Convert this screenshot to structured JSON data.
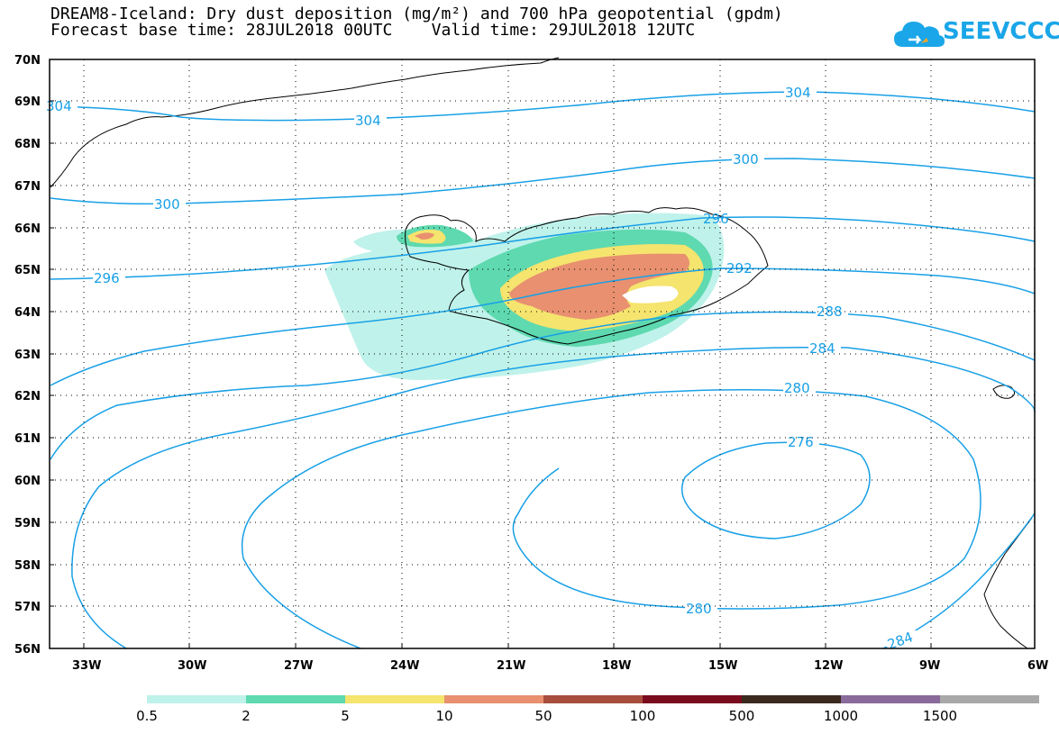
{
  "header": {
    "title_line1": "DREAM8-Iceland: Dry dust deposition (mg/m²) and 700 hPa geopotential (gpdm)",
    "title_line2": "Forecast base time: 28JUL2018 00UTC    Valid time: 29JUL2018 12UTC",
    "logo_text": "SEEVCCC",
    "logo_color": "#1aa6e8"
  },
  "map": {
    "lat_labels": [
      "70N",
      "69N",
      "68N",
      "67N",
      "66N",
      "65N",
      "64N",
      "63N",
      "62N",
      "61N",
      "60N",
      "59N",
      "58N",
      "57N",
      "56N"
    ],
    "lon_labels": [
      "33W",
      "30W",
      "27W",
      "24W",
      "21W",
      "18W",
      "15W",
      "12W",
      "9W",
      "6W"
    ],
    "contour_color": "#18a0e6",
    "contour_labels": [
      {
        "text": "304",
        "id": "c304a"
      },
      {
        "text": "304",
        "id": "c304b"
      },
      {
        "text": "304",
        "id": "c304c"
      },
      {
        "text": "300",
        "id": "c300a"
      },
      {
        "text": "300",
        "id": "c300b"
      },
      {
        "text": "296",
        "id": "c296a"
      },
      {
        "text": "296",
        "id": "c296b"
      },
      {
        "text": "292",
        "id": "c292"
      },
      {
        "text": "288",
        "id": "c288"
      },
      {
        "text": "284",
        "id": "c284a"
      },
      {
        "text": "284",
        "id": "c284b"
      },
      {
        "text": "280",
        "id": "c280a"
      },
      {
        "text": "280",
        "id": "c280b"
      },
      {
        "text": "276",
        "id": "c276"
      }
    ]
  },
  "legend": {
    "colors": [
      "#bff2ea",
      "#5ed9b0",
      "#f5e46e",
      "#e89070",
      "#a84e3e",
      "#7a0a1e",
      "#3a2a1e",
      "#8a6a9a",
      "#a8a8a8"
    ],
    "labels": [
      "0.5",
      "2",
      "5",
      "10",
      "50",
      "100",
      "500",
      "1000",
      "1500"
    ]
  }
}
